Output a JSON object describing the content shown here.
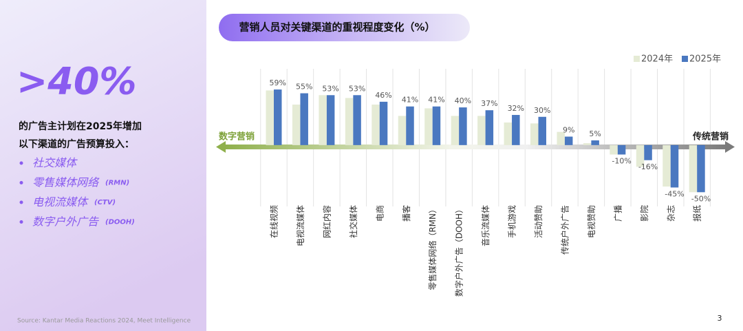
{
  "panel": {
    "headline": ">40%",
    "lines": [
      "的广告主计划在2025年增加",
      "以下渠道的广告预算投入："
    ],
    "bullets": [
      {
        "label": "社交媒体"
      },
      {
        "label": "零售媒体网络",
        "tag": "(RMN)"
      },
      {
        "label": "电视流媒体",
        "tag": "(CTV)"
      },
      {
        "label": "数字户外广告",
        "tag": "(DOOH)"
      }
    ],
    "source": "Source: Kantar Media Reactions 2024, Meet Intelligence",
    "page": "3"
  },
  "chart_data": {
    "type": "bar",
    "title": "营销人员对关键渠道的重视程度变化（%）",
    "arrow_left": "数字营销",
    "arrow_right": "传统营销",
    "categories": [
      "在线视频",
      "电视流媒体",
      "网红内容",
      "社交媒体",
      "电商",
      "播客",
      "零售媒体网络（RMN）",
      "数字户外广告（DOOH）",
      "音乐流媒体",
      "手机游戏",
      "活动赞助",
      "传统户外广告",
      "电视赞助",
      "广播",
      "影院",
      "杂志",
      "报纸"
    ],
    "series": [
      {
        "name": "2024年",
        "color": "#e5ebd5",
        "values": [
          58,
          43,
          53,
          50,
          43,
          31,
          39,
          31,
          31,
          24,
          23,
          14,
          2,
          -10,
          -23,
          -44,
          -50
        ]
      },
      {
        "name": "2025年",
        "color": "#4a78c0",
        "values": [
          59,
          55,
          53,
          53,
          46,
          41,
          41,
          40,
          37,
          32,
          30,
          9,
          5,
          -10,
          -16,
          -45,
          -50
        ],
        "value_labels": [
          "59%",
          "55%",
          "53%",
          "53%",
          "46%",
          "41%",
          "41%",
          "40%",
          "37%",
          "32%",
          "30%",
          "9%",
          "5%",
          "-10%",
          "-16%",
          "-45%",
          "-50%"
        ]
      }
    ],
    "ylim": [
      -60,
      70
    ],
    "grid": true,
    "legend": "top-right"
  }
}
